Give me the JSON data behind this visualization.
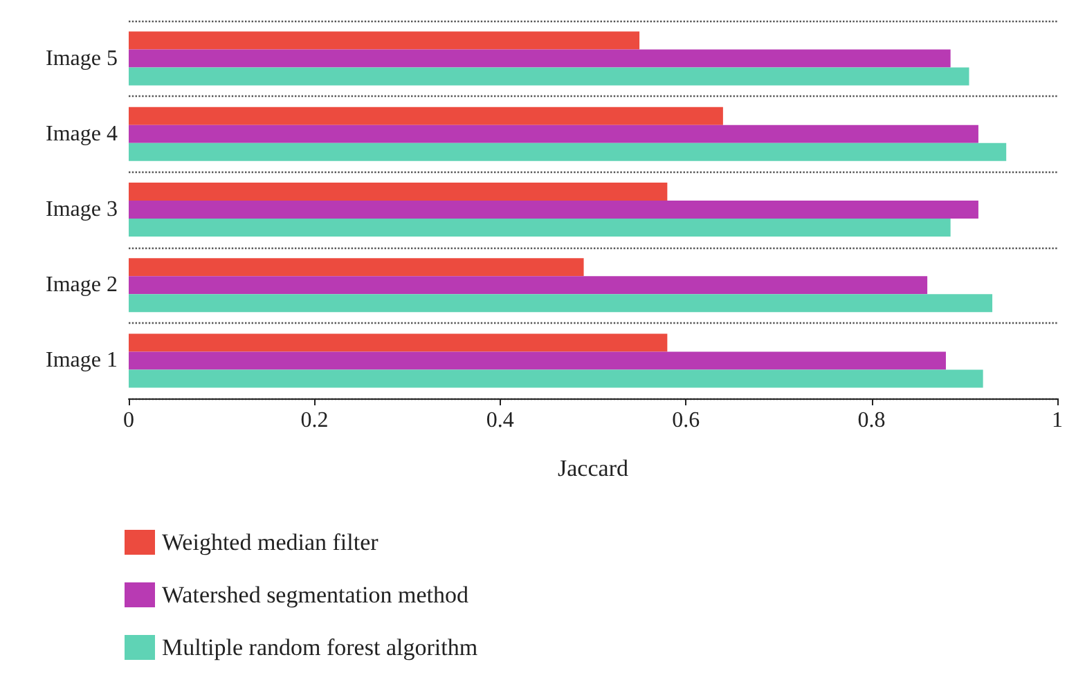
{
  "chart_data": {
    "type": "bar",
    "orientation": "horizontal",
    "xlabel": "Jaccard",
    "categories": [
      "Image 5",
      "Image 4",
      "Image 3",
      "Image 2",
      "Image 1"
    ],
    "series": [
      {
        "name": "Weighted median filter",
        "color": "#ec4b3f",
        "values": [
          0.55,
          0.64,
          0.58,
          0.49,
          0.58
        ]
      },
      {
        "name": "Watershed segmentation method",
        "color": "#b83ab3",
        "values": [
          0.885,
          0.915,
          0.915,
          0.86,
          0.88
        ]
      },
      {
        "name": "Multiple random forest algorithm",
        "color": "#5fd3b5",
        "values": [
          0.905,
          0.945,
          0.885,
          0.93,
          0.92
        ]
      }
    ],
    "xlim": [
      0,
      1
    ],
    "xticks": [
      0,
      0.2,
      0.4,
      0.6,
      0.8,
      1
    ],
    "grid": "y",
    "legend": "bottom"
  }
}
